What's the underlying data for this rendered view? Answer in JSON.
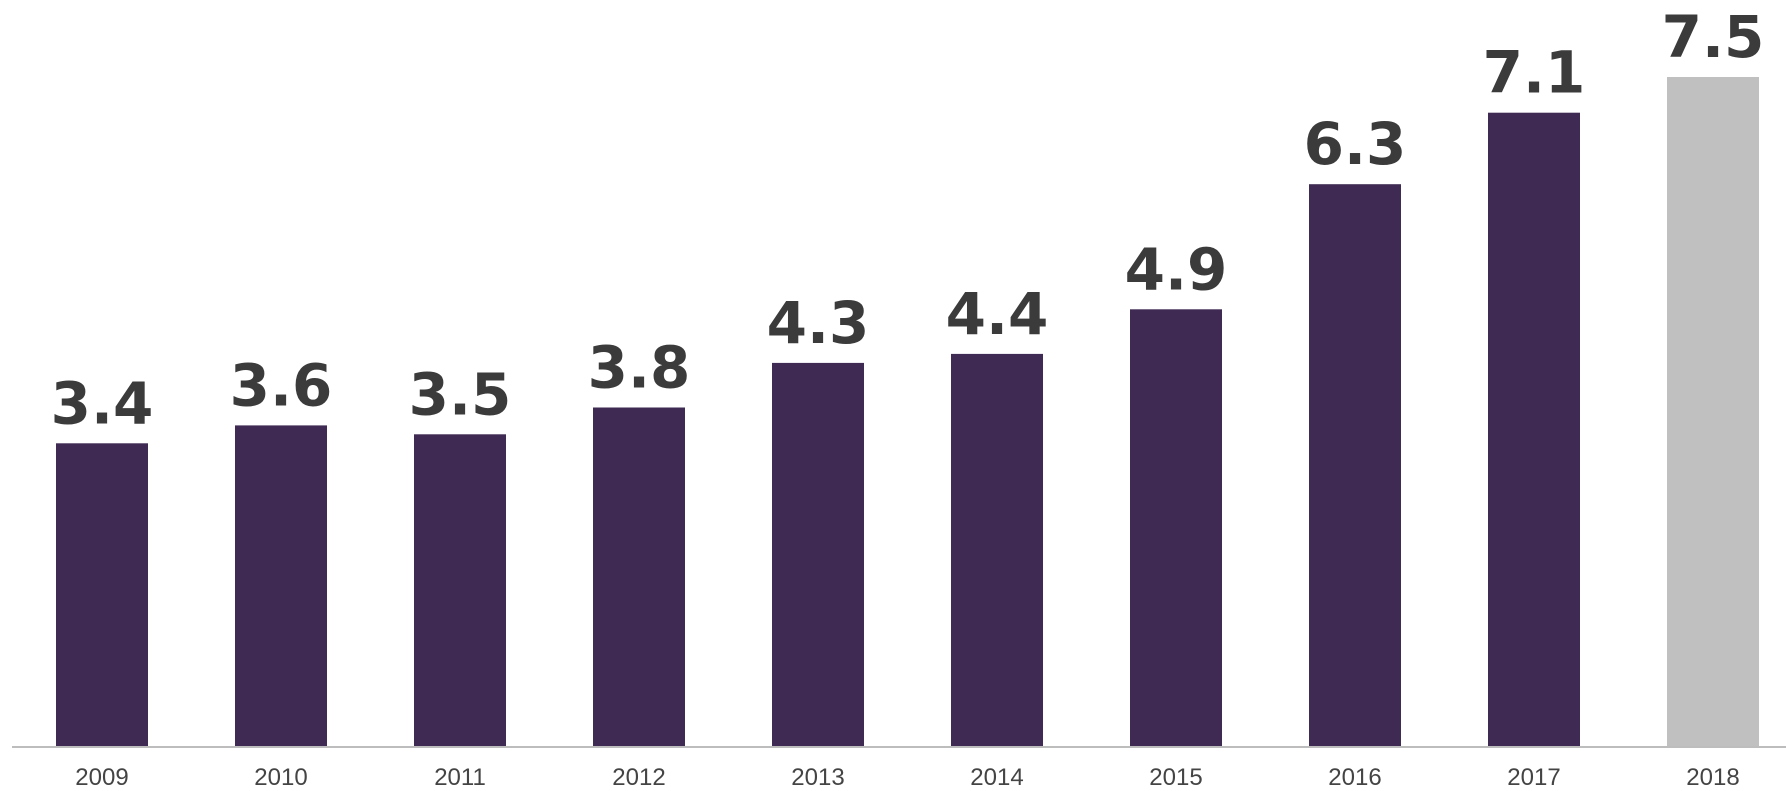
{
  "chart_data": {
    "type": "bar",
    "title": "",
    "xlabel": "",
    "ylabel": "",
    "categories": [
      "2009",
      "2010",
      "2011",
      "2012",
      "2013",
      "2014",
      "2015",
      "2016",
      "2017",
      "2018"
    ],
    "values": [
      3.4,
      3.6,
      3.5,
      3.8,
      4.3,
      4.4,
      4.9,
      6.3,
      7.1,
      7.5
    ],
    "data_labels": [
      "3.4",
      "3.6",
      "3.5",
      "3.8",
      "4.3",
      "4.4",
      "4.9",
      "6.3",
      "7.1",
      "7.5"
    ],
    "ylim": [
      0,
      7.5
    ],
    "grid": false,
    "legend": "none",
    "colors": {
      "bar": "#3e2a52",
      "highlight_bar": "#c0c0c0",
      "baseline": "#bdbdbd",
      "label": "#3b3b3b"
    },
    "highlight_category": "2018"
  }
}
